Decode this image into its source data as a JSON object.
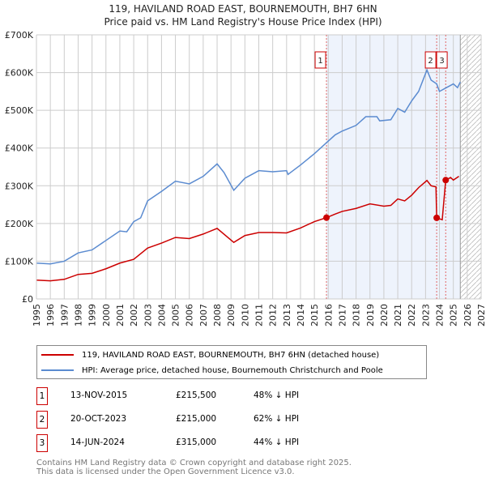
{
  "chart_data": {
    "type": "line",
    "title": "119, HAVILAND ROAD EAST, BOURNEMOUTH, BH7 6HN",
    "subtitle": "Price paid vs. HM Land Registry's House Price Index (HPI)",
    "xlim": [
      1995,
      2027
    ],
    "ylim": [
      0,
      700000
    ],
    "x_ticks": [
      "1995",
      "1996",
      "1997",
      "1998",
      "1999",
      "2000",
      "2001",
      "2002",
      "2003",
      "2004",
      "2005",
      "2006",
      "2007",
      "2008",
      "2009",
      "2010",
      "2011",
      "2012",
      "2013",
      "2014",
      "2015",
      "2016",
      "2017",
      "2018",
      "2019",
      "2020",
      "2021",
      "2022",
      "2023",
      "2024",
      "2025",
      "2026",
      "2027"
    ],
    "y_ticks": [
      {
        "v": 0,
        "label": "£0"
      },
      {
        "v": 100000,
        "label": "£100K"
      },
      {
        "v": 200000,
        "label": "£200K"
      },
      {
        "v": 300000,
        "label": "£300K"
      },
      {
        "v": 400000,
        "label": "£400K"
      },
      {
        "v": 500000,
        "label": "£500K"
      },
      {
        "v": 600000,
        "label": "£600K"
      },
      {
        "v": 700000,
        "label": "£700K"
      }
    ],
    "grid": true,
    "shaded_range": [
      2015.87,
      2025.5
    ],
    "forecast_hatch_from": 2025.5,
    "series": [
      {
        "name": "119, HAVILAND ROAD EAST, BOURNEMOUTH, BH7 6HN (detached house)",
        "color": "#cc0000",
        "x": [
          1995,
          1996,
          1997,
          1998,
          1999,
          2000,
          2001,
          2002,
          2003,
          2004,
          2005,
          2006,
          2007,
          2008,
          2009.2,
          2010,
          2011,
          2012,
          2013,
          2014,
          2015,
          2015.87,
          2016.5,
          2017,
          2018,
          2019,
          2020,
          2020.5,
          2021,
          2021.5,
          2022,
          2022.5,
          2023.1,
          2023.4,
          2023.75,
          2023.8,
          2024.2,
          2024.45,
          2024.8,
          2025,
          2025.4
        ],
        "y": [
          50000,
          48000,
          52000,
          65000,
          68000,
          80000,
          95000,
          105000,
          135000,
          148000,
          163000,
          160000,
          172000,
          187000,
          150000,
          168000,
          176000,
          176000,
          175000,
          188000,
          205000,
          215500,
          225000,
          232000,
          240000,
          252000,
          246000,
          248000,
          265000,
          260000,
          275000,
          295000,
          314000,
          300000,
          297000,
          215000,
          210000,
          315000,
          322000,
          315000,
          325000
        ]
      },
      {
        "name": "HPI: Average price, detached house, Bournemouth Christchurch and Poole",
        "color": "#5b8bd0",
        "x": [
          1995,
          1996,
          1997,
          1998,
          1999,
          2000,
          2001,
          2001.5,
          2002,
          2002.5,
          2003,
          2004,
          2005,
          2006,
          2007,
          2008,
          2008.5,
          2009.2,
          2010,
          2011,
          2012,
          2013,
          2013.1,
          2014,
          2015,
          2015.9,
          2016.5,
          2017,
          2018,
          2018.7,
          2019.5,
          2019.7,
          2020.5,
          2021,
          2021.5,
          2022,
          2022.5,
          2023.1,
          2023.4,
          2023.8,
          2024,
          2024.5,
          2025,
          2025.3,
          2025.5
        ],
        "y": [
          95000,
          93000,
          100000,
          122000,
          130000,
          155000,
          180000,
          178000,
          205000,
          215000,
          260000,
          285000,
          312000,
          305000,
          325000,
          358000,
          335000,
          288000,
          320000,
          340000,
          337000,
          340000,
          330000,
          355000,
          385000,
          415000,
          435000,
          445000,
          460000,
          483000,
          483000,
          472000,
          475000,
          505000,
          495000,
          525000,
          550000,
          607000,
          580000,
          570000,
          550000,
          560000,
          570000,
          560000,
          575000
        ]
      }
    ],
    "sales": [
      {
        "id": "1",
        "date": "13-NOV-2015",
        "x": 2015.87,
        "price": 215500,
        "price_label": "£215,500",
        "hpi_diff": "48% ↓ HPI"
      },
      {
        "id": "2",
        "date": "20-OCT-2023",
        "x": 2023.8,
        "price": 215000,
        "price_label": "£215,000",
        "hpi_diff": "62% ↓ HPI"
      },
      {
        "id": "3",
        "date": "14-JUN-2024",
        "x": 2024.45,
        "price": 315000,
        "price_label": "£315,000",
        "hpi_diff": "44% ↓ HPI"
      }
    ]
  },
  "footer": {
    "line1": "Contains HM Land Registry data © Crown copyright and database right 2025.",
    "line2": "This data is licensed under the Open Government Licence v3.0."
  }
}
